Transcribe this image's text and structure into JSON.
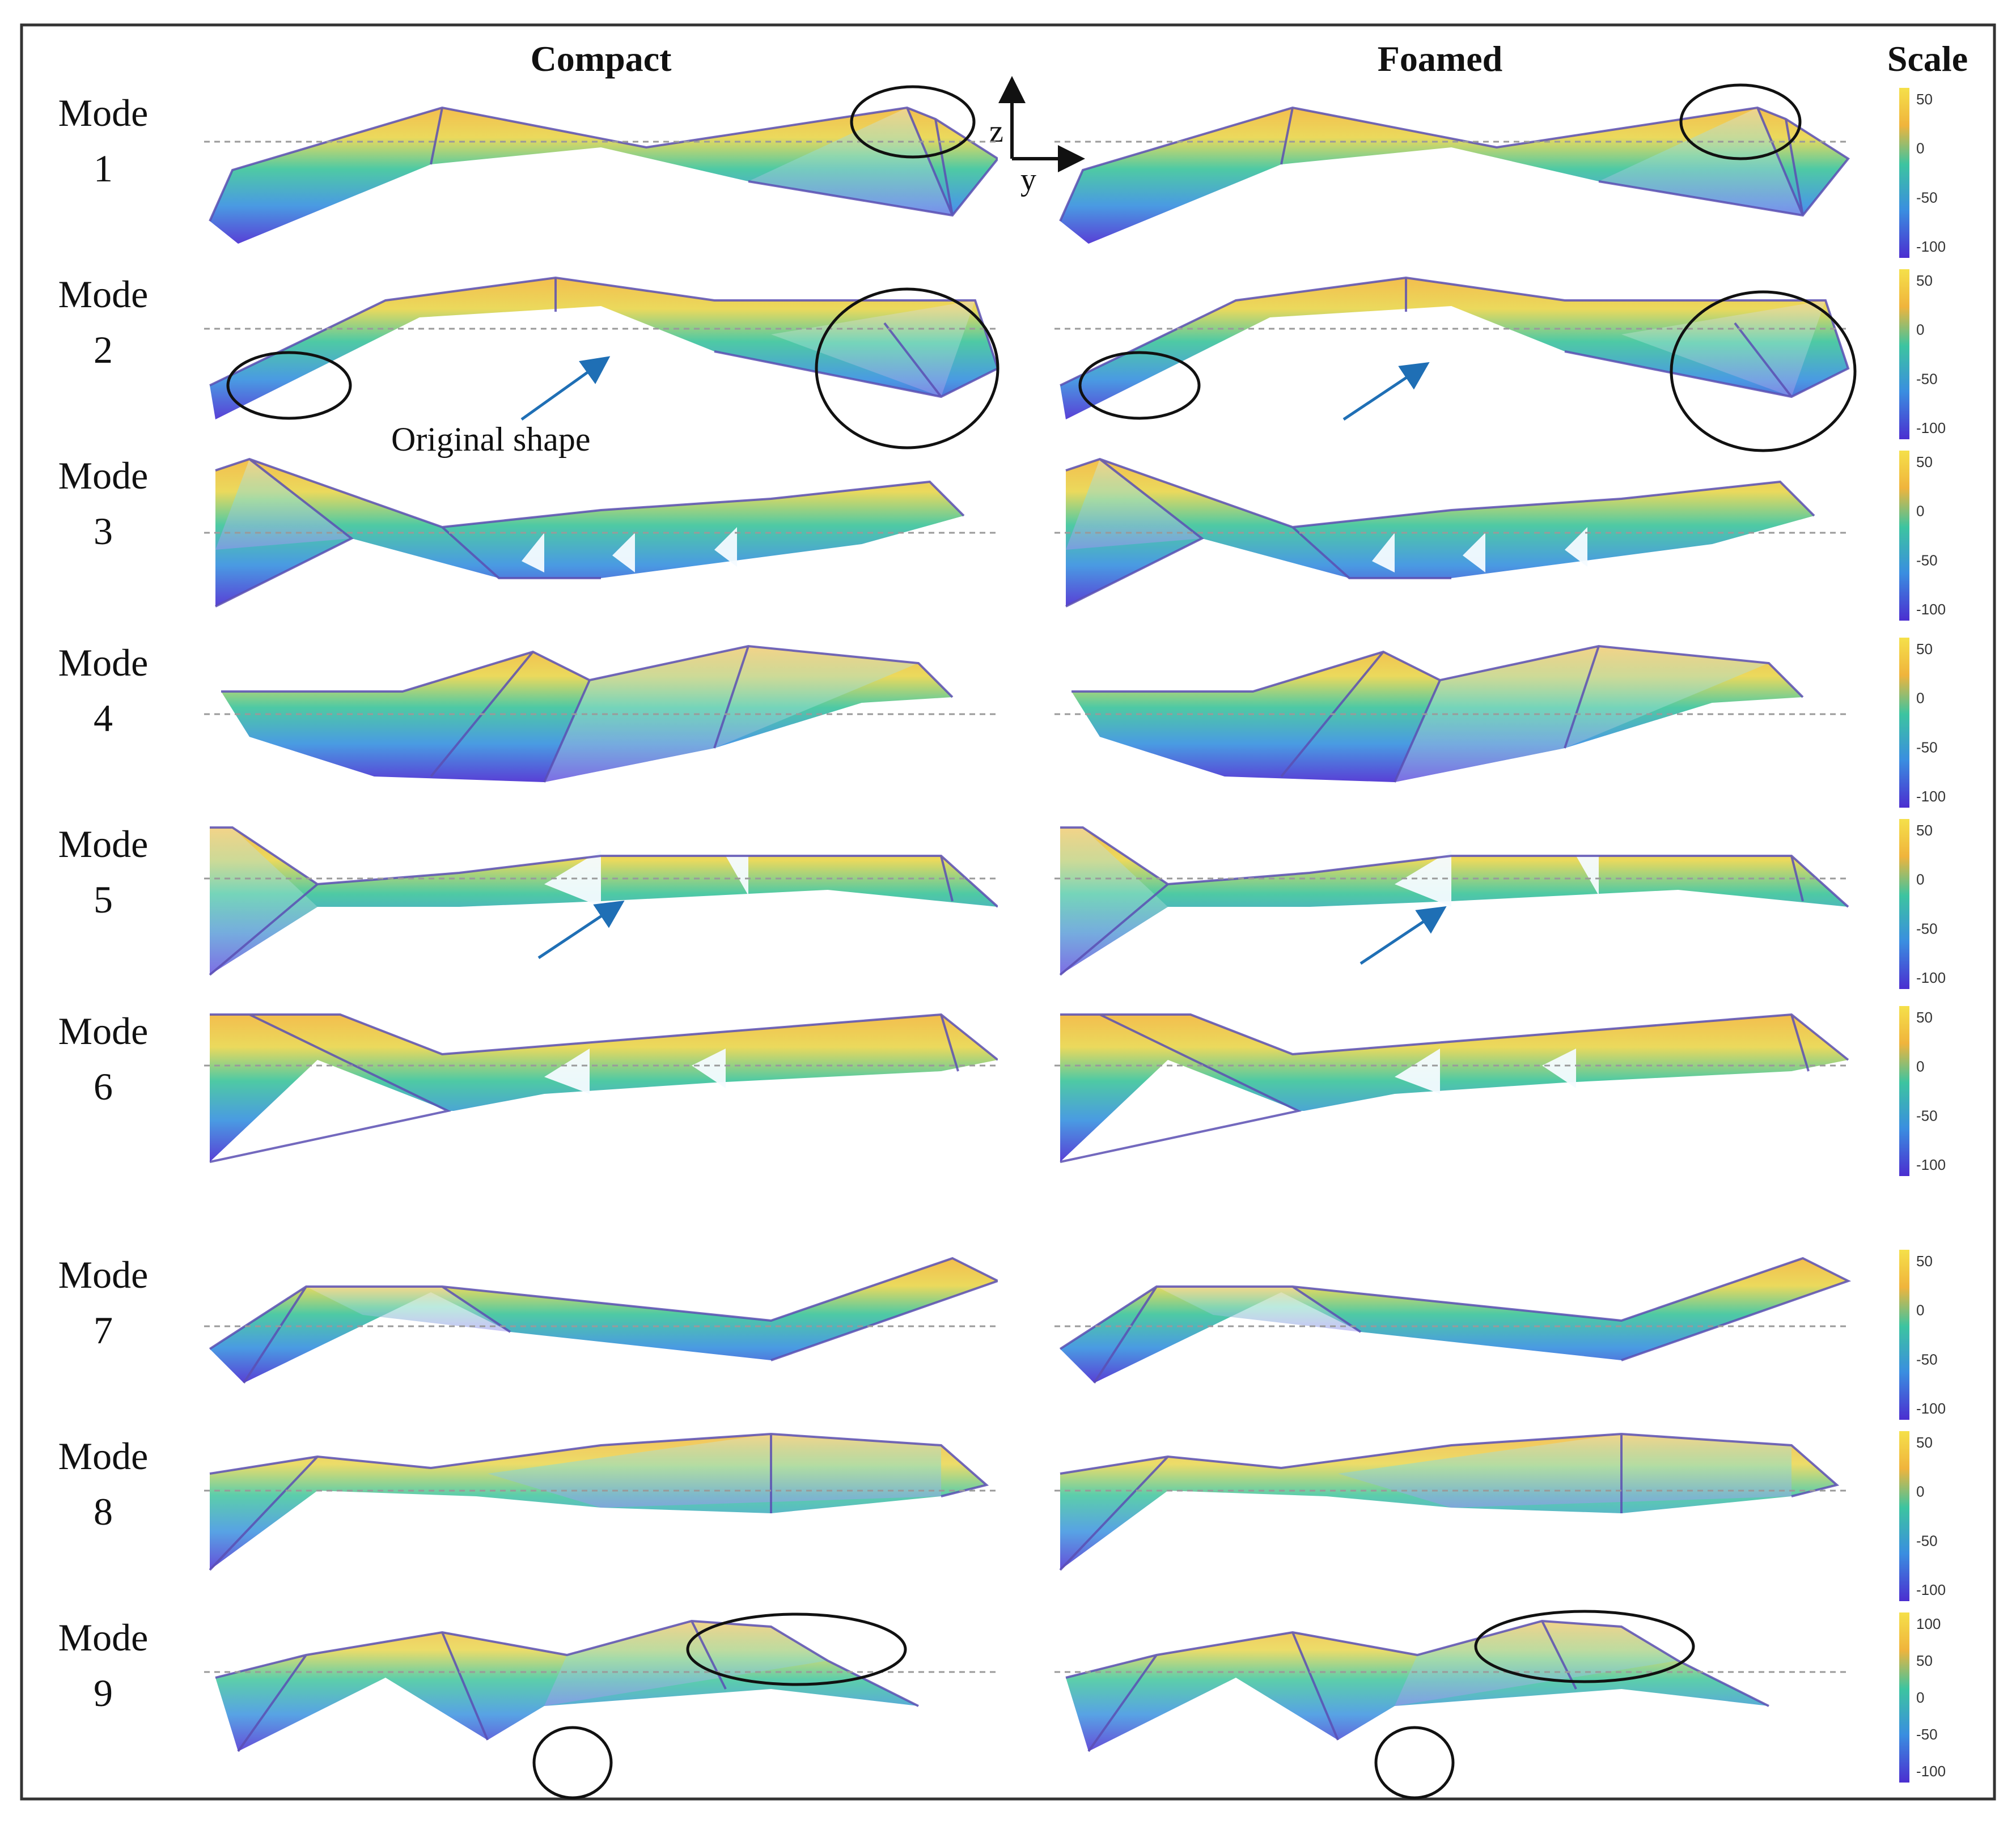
{
  "headers": {
    "compact": "Compact",
    "foamed": "Foamed",
    "scale": "Scale"
  },
  "axes": {
    "z": "z",
    "y": "y"
  },
  "annotation": {
    "original_shape": "Original shape"
  },
  "modes": [
    {
      "word": "Mode",
      "number": "1",
      "ticks": [
        "50",
        "0",
        "-50",
        "-100"
      ]
    },
    {
      "word": "Mode",
      "number": "2",
      "ticks": [
        "50",
        "0",
        "-50",
        "-100"
      ]
    },
    {
      "word": "Mode",
      "number": "3",
      "ticks": [
        "50",
        "0",
        "-50",
        "-100"
      ]
    },
    {
      "word": "Mode",
      "number": "4",
      "ticks": [
        "50",
        "0",
        "-50",
        "-100"
      ]
    },
    {
      "word": "Mode",
      "number": "5",
      "ticks": [
        "50",
        "0",
        "-50",
        "-100"
      ]
    },
    {
      "word": "Mode",
      "number": "6",
      "ticks": [
        "50",
        "0",
        "-50",
        "-100"
      ]
    },
    {
      "word": "Mode",
      "number": "7",
      "ticks": [
        "50",
        "0",
        "-50",
        "-100"
      ]
    },
    {
      "word": "Mode",
      "number": "8",
      "ticks": [
        "50",
        "0",
        "-50",
        "-100"
      ]
    },
    {
      "word": "Mode",
      "number": "9",
      "ticks": [
        "100",
        "50",
        "0",
        "-50",
        "-100"
      ]
    }
  ],
  "colors": {
    "frame": "#333333",
    "scale_top": "#f5e04a",
    "scale_upper": "#f0b43c",
    "scale_mid": "#3cc4a0",
    "scale_low": "#3a8ee0",
    "scale_bottom": "#4b2ed0",
    "circle": "#111111",
    "arrow": "#1f6fb5"
  }
}
